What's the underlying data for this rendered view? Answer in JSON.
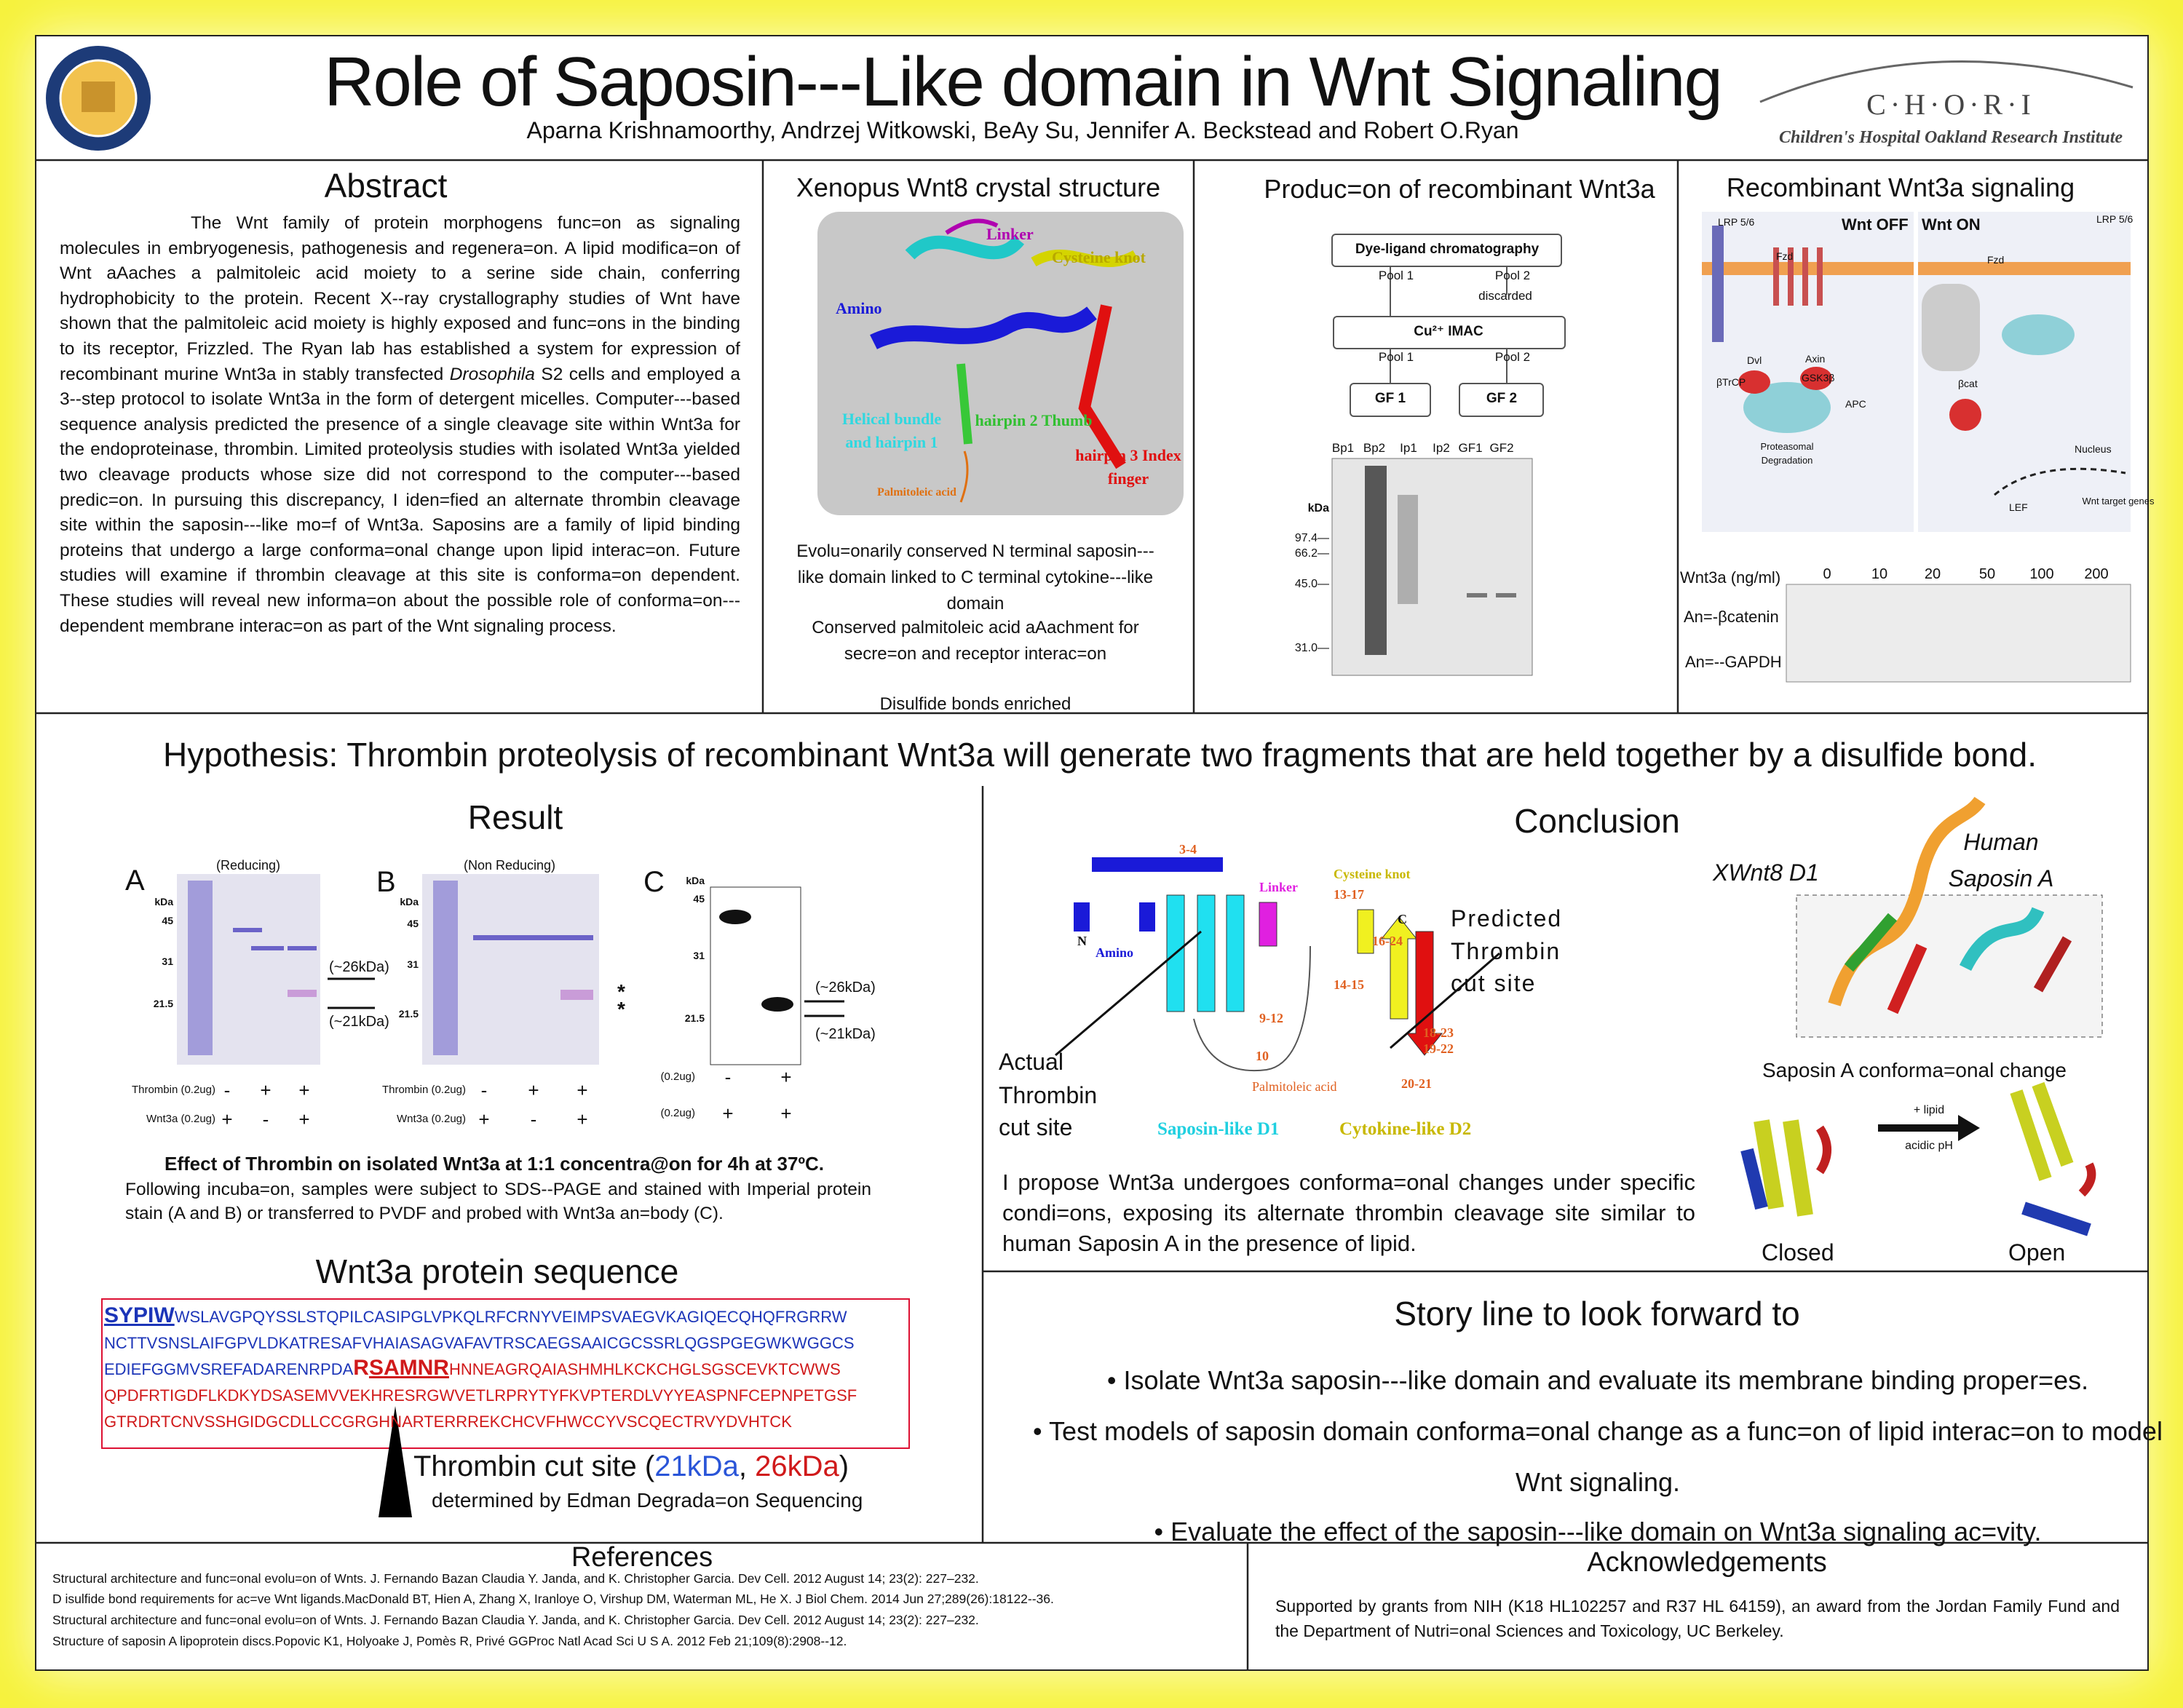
{
  "header": {
    "title": "Role of Saposin---Like domain in Wnt Signaling",
    "authors": "Aparna Krishnamoorthy, Andrzej Witkowski, BeAy Su, Jennifer A. Beckstead and Robert O.Ryan",
    "institute_letters": "C·H·O·R·I",
    "institute_name": "Children's Hospital Oakland Research Institute"
  },
  "abstract": {
    "heading": "Abstract",
    "text_before": "The Wnt family of protein morphogens func=on as signaling molecules in embryogenesis, pathogenesis and regenera=on. A lipid modifica=on of Wnt aAaches a palmitoleic acid moiety to a serine side chain, conferring hydrophobicity to the protein. Recent X--ray crystallography studies of Wnt have shown that the palmitoleic acid moiety is highly exposed and func=ons in the binding to its receptor, Frizzled. The Ryan lab has established a system for expression of recombinant murine Wnt3a in stably transfected ",
    "italic": "Drosophila",
    "text_after": " S2 cells and employed a 3--step protocol to isolate Wnt3a in the form of detergent micelles. Computer---based sequence analysis predicted the presence of a single cleavage site within Wnt3a for the endoproteinase, thrombin. Limited proteolysis studies with isolated Wnt3a yielded two cleavage products whose size did not correspond to the computer---based predic=on. In pursuing this discrepancy, I iden=fied an alternate thrombin cleavage site within the saposin---like mo=f of Wnt3a. Saposins are a family of lipid binding proteins that undergo a large conforma=onal change upon lipid interac=on. Future studies will examine if thrombin cleavage at this site is conforma=on dependent. These studies will reveal new informa=on about the possible role of conforma=on---dependent membrane interac=on as part of the Wnt signaling process."
  },
  "xenopus": {
    "heading": "Xenopus Wnt8 crystal structure",
    "figure_labels": [
      "Linker",
      "Cysteine knot",
      "Amino",
      "Helical bundle and hairpin 1",
      "hairpin 2 Thumb",
      "hairpin 3 Index finger",
      "Palmitoleic acid"
    ],
    "bullets": [
      "Evolu=onarily conserved N terminal saposin---like domain linked to C terminal cytokine---like domain",
      "Conserved palmitoleic acid aAachment for secre=on and receptor interac=on",
      "Disulfide bonds enriched"
    ]
  },
  "production": {
    "heading": "Produc=on of recombinant Wnt3a",
    "flow_labels": [
      "Dye-ligand chromatography",
      "Pool 1",
      "Pool 2",
      "discarded",
      "Cu²⁺ IMAC",
      "Pool 1",
      "Pool 2",
      "GF 1",
      "GF 2"
    ],
    "lanes": [
      "Bp1",
      "Bp2",
      "Ip1",
      "Ip2",
      "GF1",
      "GF2"
    ],
    "markers": [
      "kDa",
      "97.4—",
      "66.2—",
      "45.0—",
      "31.0—"
    ]
  },
  "signaling": {
    "heading": "Recombinant Wnt3a signaling",
    "figure_labels": [
      "LRP 5/6",
      "Wnt OFF",
      "Wnt ON",
      "LRP 5/6",
      "Fzd",
      "Fzd",
      "Dvl",
      "Axin",
      "βTrCP",
      "GSK3β",
      "APC",
      "Proteasomal Degradation",
      "βcat",
      "Nucleus",
      "LEF",
      "Wnt target genes"
    ],
    "dose_label": "Wnt3a (ng/ml)",
    "doses": [
      "0",
      "10",
      "20",
      "50",
      "100",
      "200"
    ],
    "rows": [
      "An=-βcatenin",
      "An=--GAPDH"
    ]
  },
  "hypothesis": "Hypothesis: Thrombin proteolysis of recombinant Wnt3a will generate two fragments that are held together by a disulfide bond.",
  "result": {
    "heading": "Result",
    "panel_a": {
      "letter": "A",
      "condition": "(Reducing)",
      "markers": [
        "kDa",
        "45",
        "31",
        "21.5"
      ],
      "arrows": [
        "(~26kDa)",
        "(~21kDa)"
      ],
      "thrombin_label": "Thrombin (0.2ug)",
      "wnt_label": "Wnt3a (0.2ug)",
      "thrombin_signs": [
        "-",
        "+",
        "+"
      ],
      "wnt_signs": [
        "+",
        "-",
        "+"
      ]
    },
    "panel_b": {
      "letter": "B",
      "condition": "(Non Reducing)",
      "markers": [
        "kDa",
        "45",
        "31",
        "21.5"
      ],
      "stars": [
        "*",
        "*"
      ],
      "thrombin_label": "Thrombin (0.2ug)",
      "wnt_label": "Wnt3a (0.2ug)",
      "thrombin_signs": [
        "-",
        "+",
        "+"
      ],
      "wnt_signs": [
        "+",
        "-",
        "+"
      ]
    },
    "panel_c": {
      "letter": "C",
      "markers": [
        "kDa",
        "45",
        "31",
        "21.5"
      ],
      "arrows": [
        "(~26kDa)",
        "(~21kDa)"
      ],
      "thrombin_label": "(0.2ug)",
      "wnt_label": "(0.2ug)",
      "thrombin_signs": [
        "-",
        "+"
      ],
      "wnt_signs": [
        "+",
        "+"
      ]
    },
    "caption_title": "Effect of Thrombin on isolated Wnt3a at 1:1 concentra@on for 4h at 37ºC.",
    "caption": "Following incuba=on, samples were subject to SDS--PAGE and stained with Imperial protein stain (A and B) or transferred to PVDF and probed with Wnt3a an=body (C)."
  },
  "sequence": {
    "heading": "Wnt3a protein sequence",
    "start": "SYPIW",
    "line_1": "WSLAVGPQYSSLSTQPILCASIPGLVPKQLRFCRNYVEIMPSVAEGVKAGIQECQHQFRGRRW",
    "line_2": "NCTTVSNSLAIFGPVLDKATRESAFVHAIASAGVAFAVTRSCAEGSAAICGCSSRLQGSPGEGWKWGGCS",
    "line_3_blue": "EDIEFGGMVSREFADARENRPDA",
    "line_3_r": "R",
    "line_3_cut": "SAMNR",
    "line_3_red": "HNNEAGRQAIASHMHLKCKCHGLSGSCEVKTCWWS",
    "line_4": "QPDFRTIGDFLKDKYDSASEMVVEKHRESRGWVETLRPRYTYFKVPTERDLVYYEASPNFCEPNPETGSF",
    "line_5": "GTRDRTCNVSSHGIDGCDLLCCGRGHNARTERRREKCHCVFHWCCYVSCQECTRVYDVHTCK",
    "cut_open": "Thrombin cut site (",
    "cut_small": "21kDa",
    "cut_sep": ", ",
    "cut_large": "26kDa",
    "cut_close": ")",
    "method": "determined by Edman Degrada=on Sequencing"
  },
  "conclusion": {
    "heading": "Conclusion",
    "diagram_labels": [
      "N",
      "Amino",
      "3-4",
      "Linker",
      "Cysteine knot",
      "13-17",
      "16-24",
      "14-15",
      "C",
      "9-12",
      "10",
      "18-23",
      "19-22",
      "20-21",
      "Palmitoleic acid",
      "Saposin-like D1",
      "Cytokine-like D2"
    ],
    "predicted": [
      "Predicted",
      "Thrombin",
      "cut site"
    ],
    "actual": [
      "Actual",
      "Thrombin",
      "cut site"
    ],
    "text": "I propose Wnt3a undergoes conforma=onal changes under specific condi=ons, exposing its alternate thrombin cleavage site similar to human Saposin A in the presence of lipid.",
    "xwnt": "XWnt8 D1",
    "saposin": [
      "Human",
      "Saposin A"
    ],
    "change": "Saposin A conforma=onal change",
    "lipid": "+ lipid",
    "ph": "acidic pH",
    "closed": "Closed",
    "open": "Open"
  },
  "story": {
    "heading": "Story line to look forward to",
    "bullets": [
      "Isolate Wnt3a saposin---like domain and evaluate its membrane binding proper=es.",
      "Test models of saposin domain conforma=onal change as a func=on of lipid interac=on to model Wnt signaling.",
      "Evaluate the effect of the  saposin---like domain on Wnt3a signaling ac=vity."
    ]
  },
  "references": {
    "heading": "References",
    "items": [
      "Structural architecture and func=onal evolu=on of Wnts. J. Fernando Bazan Claudia Y. Janda, and K. Christopher Garcia. Dev Cell. 2012 August 14; 23(2): 227–232.",
      "D isulfide bond requirements for ac=ve  Wnt ligands.MacDonald BT, Hien A, Zhang X, Iranloye O, Virshup DM, Waterman ML, He X. J Biol Chem. 2014 Jun 27;289(26):18122--36.",
      "Structural architecture and func=onal evolu=on of Wnts. J. Fernando Bazan Claudia Y. Janda, and K. Christopher Garcia. Dev Cell. 2012 August 14; 23(2): 227–232.",
      "Structure of saposin A lipoprotein discs.Popovic K1, Holyoake J, Pomès R, Privé GGProc Natl Acad Sci U S A. 2012 Feb 21;109(8):2908--12."
    ]
  },
  "acknowledgements": {
    "heading": "Acknowledgements",
    "text": "Supported by grants from NIH (K18 HL102257 and R37 HL 64159), an award from the Jordan Family Fund and the Department of Nutri=onal Sciences and Toxicology, UC Berkeley."
  }
}
